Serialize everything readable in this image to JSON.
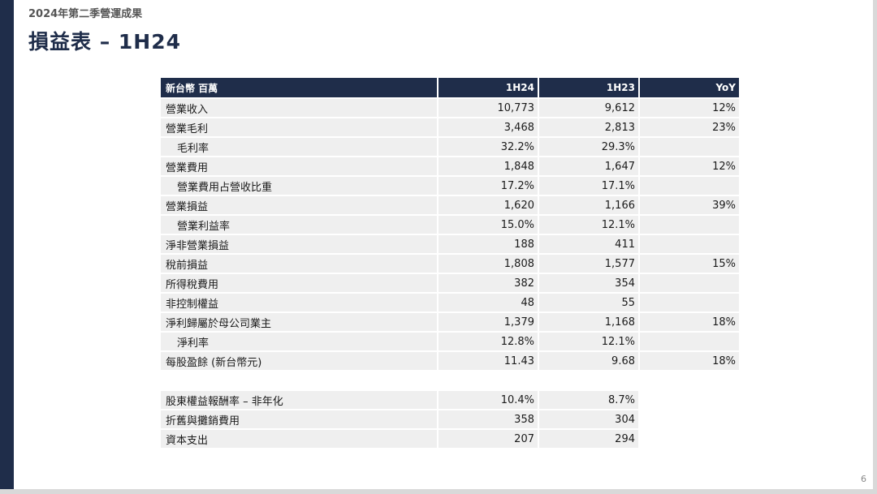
{
  "header": {
    "subtitle": "2024年第二季營運成果",
    "title": "損益表 – 1H24",
    "page_number": "6"
  },
  "income_table": {
    "columns": [
      "新台幣 百萬",
      "1H24",
      "1H23",
      "YoY"
    ],
    "rows": [
      {
        "label": "營業收入",
        "h124": "10,773",
        "h123": "9,612",
        "yoy": "12%",
        "indent": false
      },
      {
        "label": "營業毛利",
        "h124": "3,468",
        "h123": "2,813",
        "yoy": "23%",
        "indent": false
      },
      {
        "label": "毛利率",
        "h124": "32.2%",
        "h123": "29.3%",
        "yoy": "",
        "indent": true
      },
      {
        "label": "營業費用",
        "h124": "1,848",
        "h123": "1,647",
        "yoy": "12%",
        "indent": false
      },
      {
        "label": "營業費用占營收比重",
        "h124": "17.2%",
        "h123": "17.1%",
        "yoy": "",
        "indent": true
      },
      {
        "label": "營業損益",
        "h124": "1,620",
        "h123": "1,166",
        "yoy": "39%",
        "indent": false
      },
      {
        "label": "營業利益率",
        "h124": "15.0%",
        "h123": "12.1%",
        "yoy": "",
        "indent": true
      },
      {
        "label": "淨非營業損益",
        "h124": "188",
        "h123": "411",
        "yoy": "",
        "indent": false
      },
      {
        "label": "稅前損益",
        "h124": "1,808",
        "h123": "1,577",
        "yoy": "15%",
        "indent": false
      },
      {
        "label": "所得稅費用",
        "h124": "382",
        "h123": "354",
        "yoy": "",
        "indent": false
      },
      {
        "label": "非控制權益",
        "h124": "48",
        "h123": "55",
        "yoy": "",
        "indent": false
      },
      {
        "label": "淨利歸屬於母公司業主",
        "h124": "1,379",
        "h123": "1,168",
        "yoy": "18%",
        "indent": false
      },
      {
        "label": "淨利率",
        "h124": "12.8%",
        "h123": "12.1%",
        "yoy": "",
        "indent": true
      },
      {
        "label": "每股盈餘 (新台幣元)",
        "h124": "11.43",
        "h123": "9.68",
        "yoy": "18%",
        "indent": false
      }
    ]
  },
  "other_table": {
    "rows": [
      {
        "label": "股東權益報酬率 – 非年化",
        "h124": "10.4%",
        "h123": "8.7%"
      },
      {
        "label": "折舊與攤銷費用",
        "h124": "358",
        "h123": "304"
      },
      {
        "label": "資本支出",
        "h124": "207",
        "h123": "294"
      }
    ]
  },
  "colors": {
    "accent": "#1f2d4a",
    "row_background": "#efefef"
  }
}
